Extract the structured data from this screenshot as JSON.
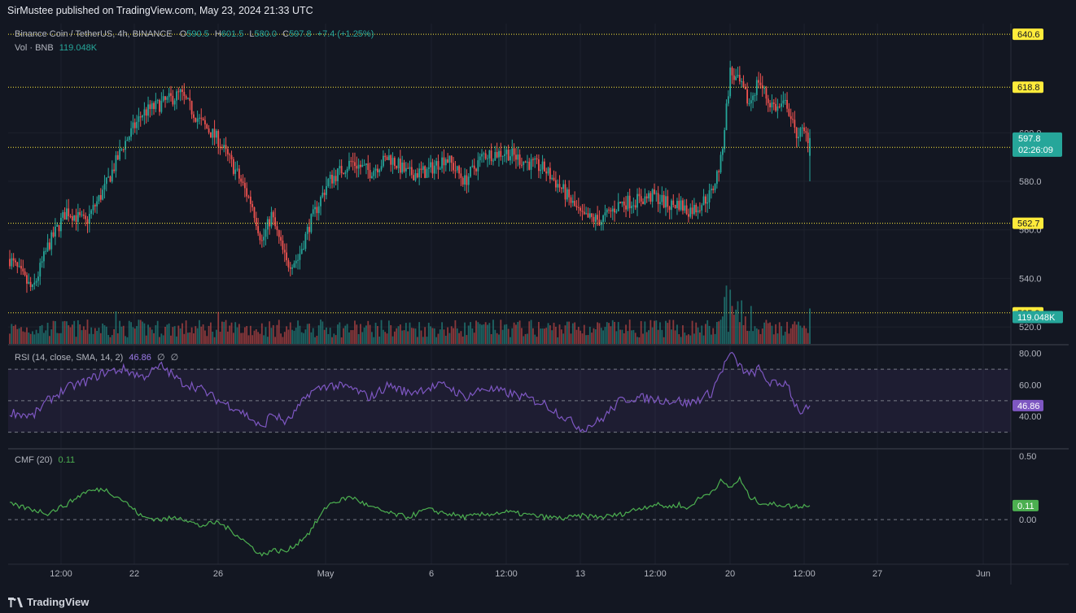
{
  "header": {
    "published": "SirMustee published on TradingView.com, May 23, 2024 21:33 UTC"
  },
  "footer": {
    "brand": "TradingView"
  },
  "main_legend": {
    "symbol": "Binance Coin / TetherUS, 4h, BINANCE",
    "o_label": "O",
    "o": "590.5",
    "h_label": "H",
    "h": "601.5",
    "l_label": "L",
    "l": "580.0",
    "c_label": "C",
    "c": "597.8",
    "change": "+7.4 (+1.25%)"
  },
  "vol_legend": {
    "label": "Vol · BNB",
    "value": "119.048K"
  },
  "rsi_legend": {
    "label": "RSI (14, close, SMA, 14, 2)",
    "value": "46.86",
    "na1": "∅",
    "na2": "∅"
  },
  "cmf_legend": {
    "label": "CMF (20)",
    "value": "0.11"
  },
  "price_axis": {
    "ticks": [
      "600.0",
      "580.0",
      "560.0",
      "540.0",
      "520.0"
    ],
    "levels": [
      "640.6",
      "618.8",
      "594.0",
      "562.7",
      "525.8"
    ],
    "last_price": "597.8",
    "countdown": "02:26:09",
    "volume_tag": "119.048K"
  },
  "rsi_axis": {
    "ticks": [
      "80.00",
      "60.00",
      "40.00"
    ],
    "tag": "46.86"
  },
  "cmf_axis": {
    "ticks": [
      "0.50",
      "0.00"
    ],
    "tag": "0.11"
  },
  "time_axis": [
    "12:00",
    "22",
    "26",
    "May",
    "6",
    "12:00",
    "13",
    "12:00",
    "20",
    "12:00",
    "27",
    "Jun"
  ],
  "colors": {
    "up": "#26a69a",
    "down": "#ef5350",
    "rsi": "#7e57c2",
    "cmf": "#4caf50",
    "level": "#ffeb3b",
    "bg": "#131722"
  },
  "chart_data": {
    "type": "candlestick",
    "last": {
      "open": 590.5,
      "high": 601.5,
      "low": 580.0,
      "close": 597.8
    },
    "price_range": [
      513,
      645
    ],
    "horizontal_levels": [
      640.6,
      618.8,
      594.0,
      562.7,
      525.8
    ],
    "close_path": [
      [
        0,
        548
      ],
      [
        12,
        535
      ],
      [
        20,
        553
      ],
      [
        30,
        568
      ],
      [
        40,
        563
      ],
      [
        50,
        577
      ],
      [
        60,
        595
      ],
      [
        70,
        608
      ],
      [
        80,
        612
      ],
      [
        90,
        616
      ],
      [
        100,
        605
      ],
      [
        110,
        597
      ],
      [
        120,
        583
      ],
      [
        128,
        570
      ],
      [
        133,
        555
      ],
      [
        138,
        566
      ],
      [
        146,
        546
      ],
      [
        152,
        548
      ],
      [
        158,
        562
      ],
      [
        168,
        580
      ],
      [
        180,
        588
      ],
      [
        190,
        584
      ],
      [
        200,
        590
      ],
      [
        210,
        583
      ],
      [
        220,
        584
      ],
      [
        230,
        590
      ],
      [
        240,
        580
      ],
      [
        250,
        591
      ],
      [
        262,
        592
      ],
      [
        272,
        588
      ],
      [
        282,
        585
      ],
      [
        292,
        576
      ],
      [
        302,
        565
      ],
      [
        312,
        564
      ],
      [
        322,
        571
      ],
      [
        330,
        572
      ],
      [
        340,
        574
      ],
      [
        348,
        570
      ],
      [
        353,
        571
      ],
      [
        357,
        568
      ],
      [
        362,
        569
      ],
      [
        370,
        575
      ],
      [
        375,
        588
      ],
      [
        380,
        625
      ],
      [
        385,
        620
      ],
      [
        390,
        612
      ],
      [
        395,
        622
      ],
      [
        400,
        613
      ],
      [
        405,
        610
      ],
      [
        410,
        612
      ],
      [
        414,
        600
      ],
      [
        418,
        600
      ],
      [
        422,
        597.8
      ]
    ],
    "volume_max": 100,
    "rsi_range": [
      20,
      85
    ],
    "rsi_bands": [
      70,
      50,
      30
    ],
    "rsi_path": [
      [
        0,
        43
      ],
      [
        12,
        40
      ],
      [
        20,
        50
      ],
      [
        30,
        58
      ],
      [
        40,
        62
      ],
      [
        50,
        68
      ],
      [
        60,
        70
      ],
      [
        70,
        65
      ],
      [
        80,
        72
      ],
      [
        90,
        62
      ],
      [
        100,
        58
      ],
      [
        110,
        50
      ],
      [
        120,
        45
      ],
      [
        128,
        38
      ],
      [
        133,
        32
      ],
      [
        138,
        42
      ],
      [
        146,
        36
      ],
      [
        152,
        45
      ],
      [
        158,
        55
      ],
      [
        168,
        60
      ],
      [
        180,
        58
      ],
      [
        190,
        52
      ],
      [
        200,
        60
      ],
      [
        210,
        55
      ],
      [
        220,
        58
      ],
      [
        230,
        60
      ],
      [
        240,
        52
      ],
      [
        250,
        58
      ],
      [
        262,
        55
      ],
      [
        272,
        52
      ],
      [
        282,
        48
      ],
      [
        292,
        40
      ],
      [
        302,
        32
      ],
      [
        312,
        38
      ],
      [
        322,
        50
      ],
      [
        330,
        52
      ],
      [
        340,
        51
      ],
      [
        348,
        50
      ],
      [
        353,
        50
      ],
      [
        357,
        48
      ],
      [
        362,
        50
      ],
      [
        370,
        55
      ],
      [
        375,
        68
      ],
      [
        380,
        80
      ],
      [
        385,
        72
      ],
      [
        390,
        66
      ],
      [
        395,
        70
      ],
      [
        400,
        62
      ],
      [
        405,
        60
      ],
      [
        410,
        62
      ],
      [
        414,
        48
      ],
      [
        418,
        42
      ],
      [
        422,
        46.86
      ]
    ],
    "cmf_range": [
      -0.35,
      0.55
    ],
    "cmf_path": [
      [
        0,
        0.12
      ],
      [
        12,
        0.08
      ],
      [
        20,
        0.05
      ],
      [
        30,
        0.12
      ],
      [
        40,
        0.22
      ],
      [
        50,
        0.24
      ],
      [
        60,
        0.15
      ],
      [
        70,
        0.02
      ],
      [
        80,
        0.0
      ],
      [
        90,
        0.02
      ],
      [
        100,
        -0.05
      ],
      [
        110,
        -0.02
      ],
      [
        120,
        -0.12
      ],
      [
        128,
        -0.22
      ],
      [
        133,
        -0.28
      ],
      [
        138,
        -0.24
      ],
      [
        146,
        -0.25
      ],
      [
        152,
        -0.18
      ],
      [
        158,
        -0.1
      ],
      [
        168,
        0.12
      ],
      [
        180,
        0.18
      ],
      [
        190,
        0.1
      ],
      [
        200,
        0.05
      ],
      [
        210,
        0.02
      ],
      [
        220,
        0.08
      ],
      [
        230,
        0.05
      ],
      [
        240,
        0.02
      ],
      [
        250,
        0.04
      ],
      [
        262,
        0.06
      ],
      [
        272,
        0.04
      ],
      [
        282,
        0.02
      ],
      [
        292,
        0.01
      ],
      [
        302,
        0.03
      ],
      [
        312,
        0.02
      ],
      [
        322,
        0.04
      ],
      [
        330,
        0.08
      ],
      [
        340,
        0.12
      ],
      [
        348,
        0.1
      ],
      [
        353,
        0.12
      ],
      [
        357,
        0.08
      ],
      [
        362,
        0.15
      ],
      [
        370,
        0.22
      ],
      [
        375,
        0.3
      ],
      [
        380,
        0.25
      ],
      [
        385,
        0.32
      ],
      [
        390,
        0.18
      ],
      [
        395,
        0.14
      ],
      [
        400,
        0.12
      ],
      [
        405,
        0.12
      ],
      [
        410,
        0.11
      ],
      [
        414,
        0.1
      ],
      [
        418,
        0.11
      ],
      [
        422,
        0.11
      ]
    ]
  }
}
